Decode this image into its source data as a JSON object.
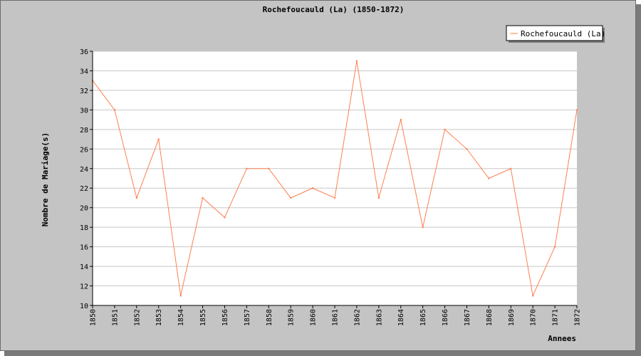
{
  "chart_data": {
    "type": "line",
    "title": "Rochefoucauld (La) (1850-1872)",
    "xlabel": "Annees",
    "ylabel": "Nombre de Mariage(s)",
    "x": [
      "1850",
      "1851",
      "1852",
      "1853",
      "1854",
      "1855",
      "1856",
      "1857",
      "1858",
      "1859",
      "1860",
      "1861",
      "1862",
      "1863",
      "1864",
      "1865",
      "1866",
      "1867",
      "1868",
      "1869",
      "1870",
      "1871",
      "1872"
    ],
    "series": [
      {
        "name": "Rochefoucauld (La)",
        "values": [
          33,
          30,
          21,
          27,
          11,
          21,
          19,
          24,
          24,
          21,
          22,
          21,
          35,
          21,
          29,
          18,
          28,
          26,
          23,
          24,
          11,
          16,
          30
        ]
      }
    ],
    "ylim": [
      10,
      36
    ],
    "yticks": [
      10,
      12,
      14,
      16,
      18,
      20,
      22,
      24,
      26,
      28,
      30,
      32,
      34,
      36
    ],
    "grid": "horizontal",
    "legend_position": "top-right",
    "colors": {
      "series": "#ff7f50",
      "background": "#c4c4c4",
      "plot_area": "#ffffff",
      "grid": "#c8c8c8"
    }
  }
}
